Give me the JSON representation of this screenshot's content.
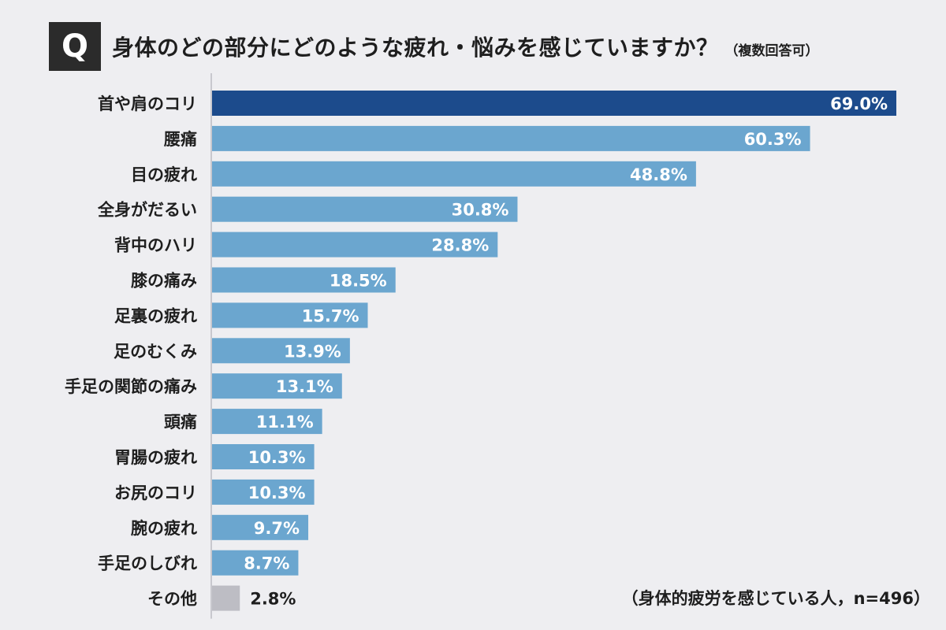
{
  "header": {
    "q_label": "Q",
    "question": "身体のどの部分にどのような疲れ・悩みを感じていますか？",
    "note": "（複数回答可）"
  },
  "footnote": "（身体的疲労を感じている人，n=496）",
  "colors": {
    "top_bar": "#1c4b8c",
    "bar": "#6ba6cf",
    "other_bar": "#bdbdc4",
    "axis": "#bcbcc2",
    "label": "#1e1e1e",
    "value_inside": "#ffffff",
    "value_outside": "#1e1e1e"
  },
  "chart_data": {
    "type": "bar",
    "orientation": "horizontal",
    "unit": "%",
    "categories": [
      "首や肩のコリ",
      "腰痛",
      "目の疲れ",
      "全身がだるい",
      "背中のハリ",
      "膝の痛み",
      "足裏の疲れ",
      "足のむくみ",
      "手足の関節の痛み",
      "頭痛",
      "胃腸の疲れ",
      "お尻のコリ",
      "腕の疲れ",
      "手足のしびれ",
      "その他"
    ],
    "values": [
      69.0,
      60.3,
      48.8,
      30.8,
      28.8,
      18.5,
      15.7,
      13.9,
      13.1,
      11.1,
      10.3,
      10.3,
      9.7,
      8.7,
      2.8
    ],
    "value_labels": [
      "69.0%",
      "60.3%",
      "48.8%",
      "30.8%",
      "28.8%",
      "18.5%",
      "15.7%",
      "13.9%",
      "13.1%",
      "11.1%",
      "10.3%",
      "10.3%",
      "9.7%",
      "8.7%",
      "2.8%"
    ],
    "title": "身体のどの部分にどのような疲れ・悩みを感じていますか？",
    "xlim": [
      0,
      69.0
    ],
    "grid": false,
    "legend": "none"
  }
}
